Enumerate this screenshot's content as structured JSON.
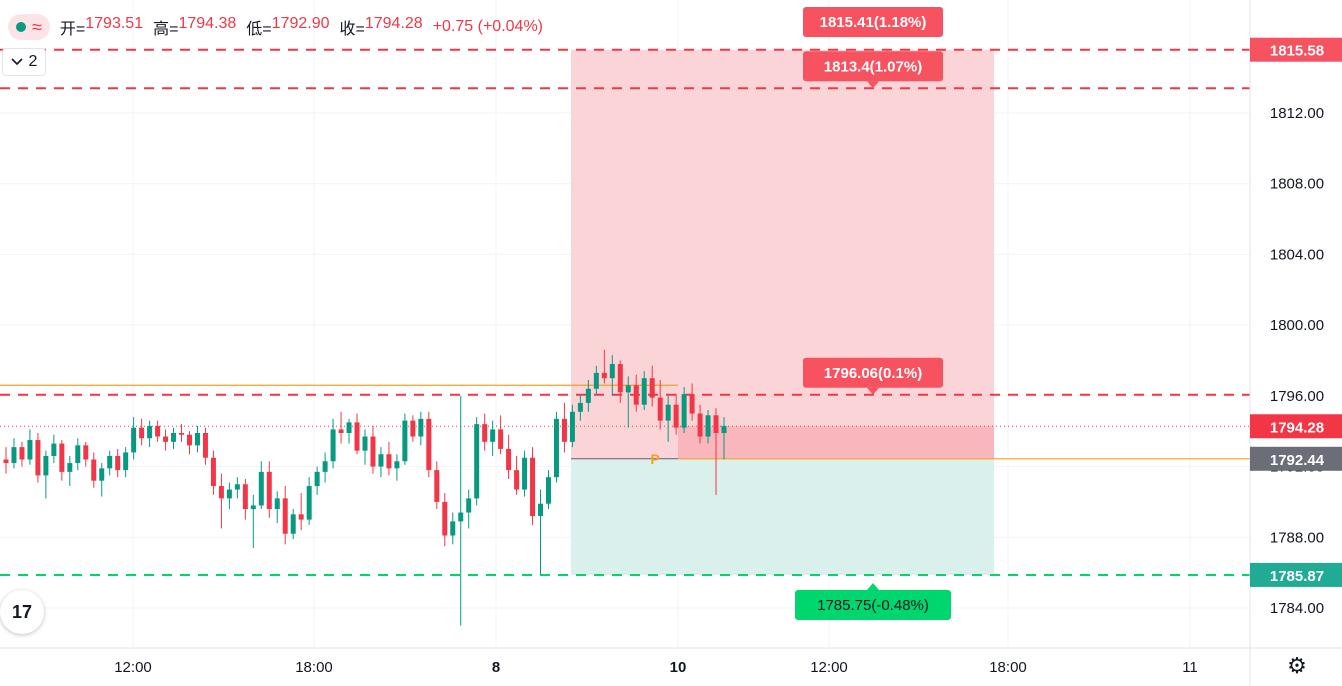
{
  "legend": {
    "open_label": "开=",
    "open_value": "1793.51",
    "high_label": "高=",
    "high_value": "1794.38",
    "low_label": "低=",
    "low_value": "1792.90",
    "close_label": "收=",
    "close_value": "1794.28",
    "change": "+0.75 (+0.04%)",
    "wave_icon": "≈"
  },
  "collapse": {
    "label": "2",
    "icon": "chevron-down-icon"
  },
  "logo_text": "17",
  "colors": {
    "up": "#089981",
    "down": "#f23645",
    "target_zone": "#fbd4d8",
    "target_zone_current": "#f9b6bd",
    "stop_zone": "#d9f0ec",
    "label_red": "#f7525f",
    "label_green": "#00d66e",
    "orange": "#f5a020",
    "grid": "#f0f3fa",
    "axis_text": "#131722",
    "current_price_bg": "#f23645",
    "entry_price_bg": "#6b6e78"
  },
  "chart_data": {
    "type": "candlestick",
    "symbol": "",
    "y_ticks": [
      1784.0,
      1788.0,
      1792.0,
      1796.0,
      1800.0,
      1804.0,
      1808.0,
      1812.0
    ],
    "y_tick_labels": [
      "1784.00",
      "1788.00",
      "1792.00",
      "1796.00",
      "1800.00",
      "1804.00",
      "1808.00",
      "1812.00"
    ],
    "y_range": [
      1782.0,
      1818.5
    ],
    "x_tick_labels": [
      "12:00",
      "18:00",
      "8",
      "10",
      "12:00",
      "18:00",
      "11"
    ],
    "price_tags": [
      {
        "value": 1815.58,
        "label": "1815.58",
        "kind": "target"
      },
      {
        "value": 1794.28,
        "label": "1794.28",
        "kind": "current"
      },
      {
        "value": 1792.44,
        "label": "1792.44",
        "kind": "entry"
      },
      {
        "value": 1785.87,
        "label": "1785.87",
        "kind": "stop"
      }
    ],
    "horizontal_lines": [
      {
        "value": 1815.58,
        "style": "dashed",
        "color": "red"
      },
      {
        "value": 1813.4,
        "style": "dashed",
        "color": "red"
      },
      {
        "value": 1796.06,
        "style": "dashed",
        "color": "red"
      },
      {
        "value": 1785.87,
        "style": "dashed",
        "color": "green"
      },
      {
        "value": 1796.6,
        "style": "solid",
        "color": "orange",
        "extent": "partial"
      },
      {
        "value": 1792.44,
        "style": "solid",
        "color": "orange",
        "extent": "partial"
      },
      {
        "value": 1794.28,
        "style": "dotted",
        "color": "red",
        "extent": "full"
      }
    ],
    "position_tool": {
      "entry": 1792.44,
      "target": 1815.58,
      "stop": 1785.87,
      "current": 1794.28,
      "labels": [
        {
          "text": "1815.41(1.18%)",
          "value": 1815.58,
          "color": "red",
          "arrow": "none"
        },
        {
          "text": "1813.4(1.07%)",
          "value": 1813.4,
          "color": "red",
          "arrow": "down"
        },
        {
          "text": "1796.06(0.1%)",
          "value": 1796.06,
          "color": "red",
          "arrow": "down"
        },
        {
          "text": "1785.75(-0.48%)",
          "value": 1785.87,
          "color": "green",
          "arrow": "up"
        }
      ],
      "entry_marker": "P"
    },
    "candles": [
      [
        1792.4,
        1793.1,
        1791.6,
        1792.2
      ],
      [
        1792.2,
        1793.6,
        1791.9,
        1793.1
      ],
      [
        1793.1,
        1793.4,
        1792.0,
        1792.4
      ],
      [
        1792.4,
        1794.1,
        1792.1,
        1793.5
      ],
      [
        1793.5,
        1793.9,
        1791.1,
        1791.5
      ],
      [
        1791.5,
        1792.9,
        1790.2,
        1792.6
      ],
      [
        1792.6,
        1793.8,
        1792.2,
        1793.3
      ],
      [
        1793.3,
        1793.5,
        1791.2,
        1791.7
      ],
      [
        1791.7,
        1792.6,
        1790.9,
        1792.2
      ],
      [
        1792.2,
        1793.6,
        1791.8,
        1793.2
      ],
      [
        1793.2,
        1793.4,
        1792.0,
        1792.4
      ],
      [
        1792.4,
        1792.8,
        1790.8,
        1791.2
      ],
      [
        1791.2,
        1792.2,
        1790.3,
        1791.9
      ],
      [
        1791.9,
        1792.9,
        1791.5,
        1792.6
      ],
      [
        1792.6,
        1793.0,
        1791.4,
        1791.8
      ],
      [
        1791.8,
        1793.1,
        1791.4,
        1792.8
      ],
      [
        1792.8,
        1794.8,
        1792.4,
        1794.2
      ],
      [
        1794.2,
        1794.7,
        1793.2,
        1793.6
      ],
      [
        1793.6,
        1794.6,
        1793.1,
        1794.3
      ],
      [
        1794.3,
        1794.6,
        1793.4,
        1793.7
      ],
      [
        1793.7,
        1794.1,
        1792.9,
        1793.4
      ],
      [
        1793.4,
        1794.2,
        1793.0,
        1793.9
      ],
      [
        1793.9,
        1794.4,
        1793.4,
        1793.8
      ],
      [
        1793.8,
        1794.0,
        1792.7,
        1793.2
      ],
      [
        1793.2,
        1794.3,
        1792.8,
        1793.9
      ],
      [
        1793.9,
        1794.2,
        1792.1,
        1792.5
      ],
      [
        1792.5,
        1792.9,
        1790.4,
        1790.9
      ],
      [
        1790.9,
        1791.6,
        1788.5,
        1790.2
      ],
      [
        1790.2,
        1791.1,
        1789.6,
        1790.7
      ],
      [
        1790.7,
        1791.4,
        1790.2,
        1791.0
      ],
      [
        1791.0,
        1791.3,
        1789.0,
        1789.6
      ],
      [
        1789.6,
        1790.4,
        1787.4,
        1789.8
      ],
      [
        1789.8,
        1792.3,
        1789.6,
        1791.7
      ],
      [
        1791.7,
        1792.3,
        1789.1,
        1789.6
      ],
      [
        1789.6,
        1790.6,
        1788.8,
        1790.2
      ],
      [
        1790.2,
        1790.9,
        1787.6,
        1788.2
      ],
      [
        1788.2,
        1789.6,
        1787.9,
        1789.3
      ],
      [
        1789.3,
        1790.5,
        1788.4,
        1789.0
      ],
      [
        1789.0,
        1791.4,
        1788.7,
        1790.9
      ],
      [
        1790.9,
        1792.0,
        1790.4,
        1791.7
      ],
      [
        1791.7,
        1792.8,
        1791.1,
        1792.3
      ],
      [
        1792.3,
        1794.7,
        1791.9,
        1794.1
      ],
      [
        1794.1,
        1795.1,
        1793.3,
        1793.9
      ],
      [
        1793.9,
        1794.7,
        1793.3,
        1794.5
      ],
      [
        1794.5,
        1795.0,
        1792.7,
        1792.9
      ],
      [
        1792.9,
        1794.1,
        1792.1,
        1793.7
      ],
      [
        1793.7,
        1794.3,
        1791.6,
        1792.0
      ],
      [
        1792.0,
        1793.1,
        1791.4,
        1792.7
      ],
      [
        1792.7,
        1793.4,
        1791.5,
        1791.9
      ],
      [
        1791.9,
        1792.7,
        1791.2,
        1792.3
      ],
      [
        1792.3,
        1795.0,
        1792.1,
        1794.6
      ],
      [
        1794.6,
        1794.9,
        1793.4,
        1793.7
      ],
      [
        1793.7,
        1795.1,
        1793.2,
        1794.7
      ],
      [
        1794.7,
        1795.1,
        1791.4,
        1791.8
      ],
      [
        1791.8,
        1792.3,
        1789.6,
        1790.0
      ],
      [
        1790.0,
        1790.5,
        1787.5,
        1788.1
      ],
      [
        1788.1,
        1789.4,
        1787.6,
        1788.9
      ],
      [
        1788.9,
        1796.0,
        1783.0,
        1789.4
      ],
      [
        1789.4,
        1790.7,
        1788.5,
        1790.2
      ],
      [
        1790.2,
        1794.8,
        1789.8,
        1794.4
      ],
      [
        1794.4,
        1795.0,
        1792.9,
        1793.4
      ],
      [
        1793.4,
        1794.6,
        1792.6,
        1794.1
      ],
      [
        1794.1,
        1794.9,
        1792.7,
        1793.0
      ],
      [
        1793.0,
        1793.8,
        1791.3,
        1791.8
      ],
      [
        1791.8,
        1792.6,
        1790.4,
        1790.7
      ],
      [
        1790.7,
        1792.9,
        1790.3,
        1792.5
      ],
      [
        1792.5,
        1793.1,
        1788.7,
        1789.2
      ],
      [
        1789.2,
        1790.7,
        1785.9,
        1789.9
      ],
      [
        1789.9,
        1791.8,
        1789.6,
        1791.4
      ],
      [
        1791.4,
        1795.1,
        1791.1,
        1794.7
      ],
      [
        1794.7,
        1795.6,
        1792.8,
        1793.4
      ],
      [
        1793.4,
        1795.5,
        1793.1,
        1795.1
      ],
      [
        1795.1,
        1796.1,
        1794.6,
        1795.6
      ],
      [
        1795.6,
        1796.9,
        1795.1,
        1796.4
      ],
      [
        1796.4,
        1797.7,
        1796.1,
        1797.3
      ],
      [
        1797.3,
        1798.6,
        1796.7,
        1797.0
      ],
      [
        1797.0,
        1798.3,
        1796.0,
        1797.8
      ],
      [
        1797.8,
        1798.0,
        1795.6,
        1796.2
      ],
      [
        1796.2,
        1797.1,
        1794.2,
        1796.6
      ],
      [
        1796.6,
        1797.2,
        1795.1,
        1795.5
      ],
      [
        1795.5,
        1797.4,
        1795.2,
        1797.0
      ],
      [
        1797.0,
        1797.7,
        1795.4,
        1795.9
      ],
      [
        1795.9,
        1796.9,
        1794.1,
        1794.6
      ],
      [
        1794.6,
        1796.0,
        1793.4,
        1795.5
      ],
      [
        1795.5,
        1796.1,
        1793.8,
        1794.2
      ],
      [
        1794.2,
        1796.5,
        1793.9,
        1796.1
      ],
      [
        1796.1,
        1796.7,
        1794.6,
        1795.0
      ],
      [
        1795.0,
        1795.5,
        1793.3,
        1793.7
      ],
      [
        1793.7,
        1795.2,
        1793.3,
        1794.9
      ],
      [
        1794.9,
        1795.3,
        1790.4,
        1793.9
      ],
      [
        1793.9,
        1794.8,
        1792.4,
        1794.3
      ]
    ]
  }
}
